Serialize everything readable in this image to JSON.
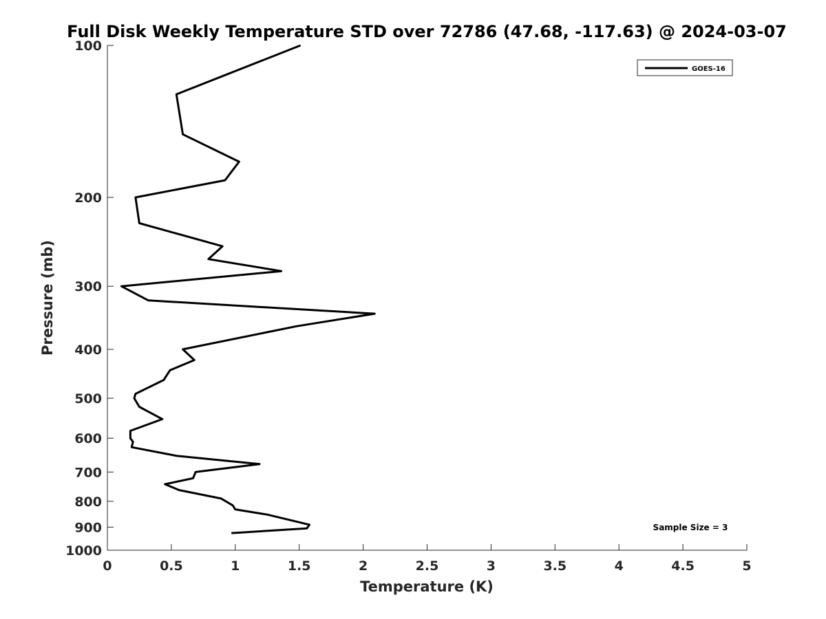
{
  "chart_data": {
    "type": "line",
    "title": "Full Disk Weekly Temperature STD over 72786 (47.68, -117.63) @ 2024-03-07",
    "xlabel": "Temperature (K)",
    "ylabel": "Pressure (mb)",
    "xlim": [
      0,
      5
    ],
    "ylim": [
      100,
      1000
    ],
    "y_scale": "log",
    "y_reversed": true,
    "grid": false,
    "legend_position": "top-right",
    "x_ticks": [
      "0",
      "0.5",
      "1",
      "1.5",
      "2",
      "2.5",
      "3",
      "3.5",
      "4",
      "4.5",
      "5"
    ],
    "y_ticks": [
      "100",
      "200",
      "300",
      "400",
      "500",
      "600",
      "700",
      "800",
      "900",
      "1000"
    ],
    "annotation": "Sample Size = 3",
    "series": [
      {
        "name": "GOES-16",
        "color": "#000000",
        "points": [
          {
            "x": 1.51,
            "p": 100
          },
          {
            "x": 0.54,
            "p": 125
          },
          {
            "x": 0.59,
            "p": 150
          },
          {
            "x": 1.03,
            "p": 170
          },
          {
            "x": 0.92,
            "p": 185
          },
          {
            "x": 0.22,
            "p": 200
          },
          {
            "x": 0.25,
            "p": 225
          },
          {
            "x": 0.9,
            "p": 250
          },
          {
            "x": 0.79,
            "p": 265
          },
          {
            "x": 1.36,
            "p": 280
          },
          {
            "x": 0.11,
            "p": 300
          },
          {
            "x": 0.32,
            "p": 320
          },
          {
            "x": 2.09,
            "p": 340
          },
          {
            "x": 1.48,
            "p": 360
          },
          {
            "x": 0.59,
            "p": 400
          },
          {
            "x": 0.68,
            "p": 420
          },
          {
            "x": 0.49,
            "p": 440
          },
          {
            "x": 0.44,
            "p": 460
          },
          {
            "x": 0.22,
            "p": 490
          },
          {
            "x": 0.21,
            "p": 500
          },
          {
            "x": 0.25,
            "p": 520
          },
          {
            "x": 0.43,
            "p": 550
          },
          {
            "x": 0.18,
            "p": 580
          },
          {
            "x": 0.18,
            "p": 600
          },
          {
            "x": 0.2,
            "p": 610
          },
          {
            "x": 0.19,
            "p": 625
          },
          {
            "x": 0.54,
            "p": 650
          },
          {
            "x": 1.19,
            "p": 675
          },
          {
            "x": 0.69,
            "p": 700
          },
          {
            "x": 0.67,
            "p": 720
          },
          {
            "x": 0.45,
            "p": 740
          },
          {
            "x": 0.56,
            "p": 760
          },
          {
            "x": 0.89,
            "p": 790
          },
          {
            "x": 0.98,
            "p": 815
          },
          {
            "x": 1.0,
            "p": 830
          },
          {
            "x": 1.25,
            "p": 850
          },
          {
            "x": 1.58,
            "p": 890
          },
          {
            "x": 1.56,
            "p": 905
          },
          {
            "x": 0.97,
            "p": 925
          }
        ]
      }
    ]
  }
}
